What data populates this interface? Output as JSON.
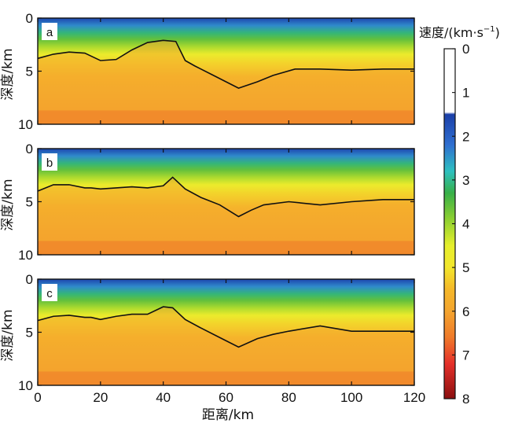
{
  "chart_data": {
    "type": "heatmap",
    "x_label": "距离/km",
    "x_ticks": [
      0,
      20,
      40,
      60,
      80,
      100,
      120
    ],
    "xlim": [
      0,
      120
    ],
    "y_label": "深度/km",
    "y_ticks": [
      0,
      5,
      10
    ],
    "ylim": [
      0,
      10
    ],
    "y_inverted": true,
    "colorbar": {
      "label_text": "速度/(km·s",
      "label_sup": "−1",
      "label_close": ")",
      "ticks": [
        0,
        1,
        2,
        3,
        4,
        5,
        6,
        7,
        8
      ],
      "range": [
        0,
        8
      ],
      "stops": [
        {
          "v": 0.0,
          "color": "#ffffff"
        },
        {
          "v": 1.45,
          "color": "#ffffff"
        },
        {
          "v": 1.5,
          "color": "#1b3fa8"
        },
        {
          "v": 2.2,
          "color": "#2f6fd0"
        },
        {
          "v": 2.8,
          "color": "#2ec0c0"
        },
        {
          "v": 3.3,
          "color": "#38b048"
        },
        {
          "v": 3.9,
          "color": "#8ed031"
        },
        {
          "v": 4.5,
          "color": "#e6ef2c"
        },
        {
          "v": 5.0,
          "color": "#f2e62c"
        },
        {
          "v": 5.5,
          "color": "#f5b82a"
        },
        {
          "v": 6.0,
          "color": "#f4a52f"
        },
        {
          "v": 6.6,
          "color": "#ef7a2a"
        },
        {
          "v": 7.2,
          "color": "#e5302a"
        },
        {
          "v": 8.0,
          "color": "#8a0f0f"
        }
      ]
    },
    "panels": [
      {
        "label": "a",
        "interface": {
          "x": [
            0,
            5,
            10,
            15,
            20,
            25,
            30,
            35,
            40,
            44,
            47,
            50,
            56,
            60,
            64,
            70,
            75,
            82,
            90,
            100,
            110,
            120
          ],
          "y": [
            3.8,
            3.4,
            3.2,
            3.3,
            4.0,
            3.9,
            3.0,
            2.3,
            2.1,
            2.2,
            4.0,
            4.5,
            5.4,
            6.0,
            6.6,
            6.0,
            5.4,
            4.8,
            4.8,
            4.9,
            4.8,
            4.8
          ]
        }
      },
      {
        "label": "b",
        "interface": {
          "x": [
            0,
            5,
            10,
            15,
            17,
            20,
            25,
            30,
            35,
            40,
            43,
            47,
            52,
            58,
            64,
            68,
            72,
            80,
            90,
            100,
            110,
            120
          ],
          "y": [
            4.0,
            3.4,
            3.4,
            3.7,
            3.7,
            3.8,
            3.7,
            3.6,
            3.7,
            3.5,
            2.7,
            3.8,
            4.6,
            5.3,
            6.4,
            5.8,
            5.3,
            5.0,
            5.3,
            5.0,
            4.8,
            4.8
          ]
        }
      },
      {
        "label": "c",
        "interface": {
          "x": [
            0,
            5,
            10,
            15,
            17,
            20,
            25,
            30,
            35,
            40,
            43,
            47,
            52,
            58,
            64,
            70,
            75,
            80,
            90,
            100,
            110,
            120
          ],
          "y": [
            3.9,
            3.5,
            3.4,
            3.6,
            3.6,
            3.8,
            3.5,
            3.3,
            3.3,
            2.6,
            2.7,
            3.8,
            4.6,
            5.5,
            6.4,
            5.6,
            5.2,
            4.9,
            4.4,
            4.9,
            4.9,
            4.9
          ]
        }
      }
    ]
  }
}
